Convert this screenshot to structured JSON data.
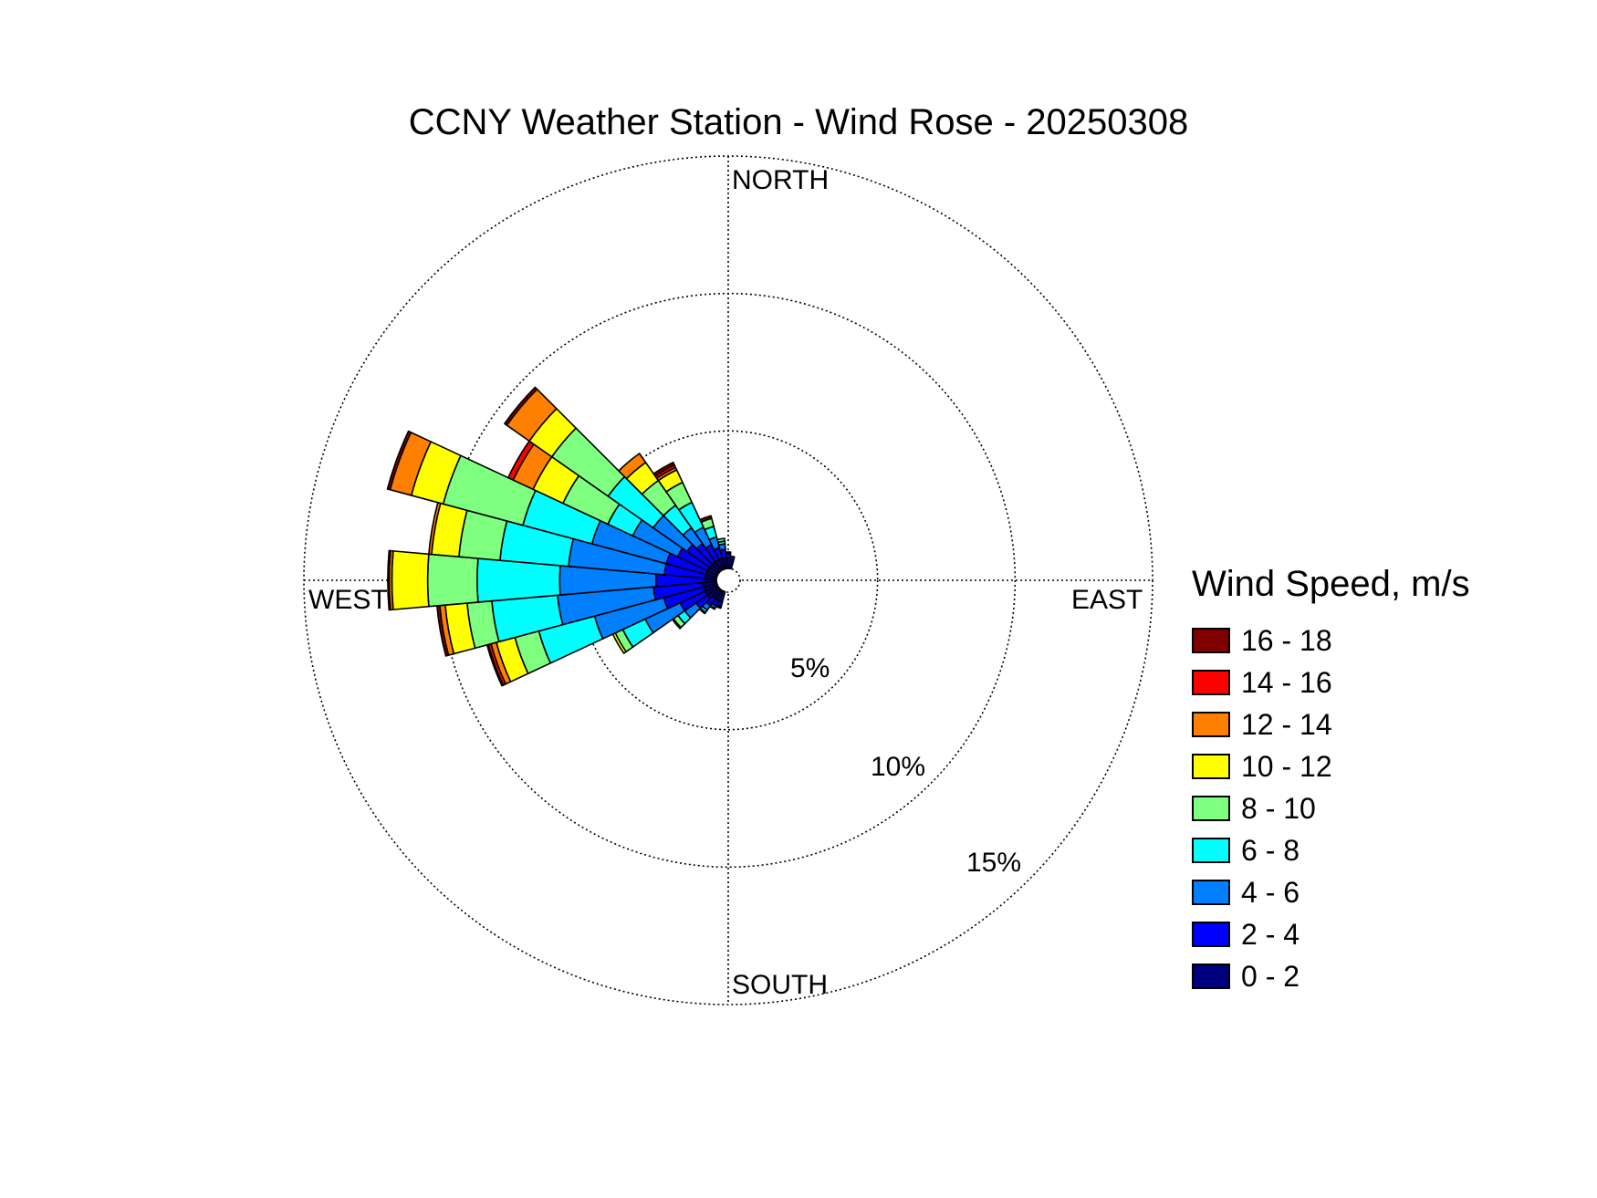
{
  "chart_data": {
    "type": "windrose",
    "title": "CCNY Weather Station - Wind Rose - 20250308",
    "directions": {
      "north": "NORTH",
      "east": "EAST",
      "south": "SOUTH",
      "west": "WEST"
    },
    "radial_ticks": [
      5,
      10,
      15
    ],
    "radial_tick_labels": [
      "5%",
      "10%",
      "15%"
    ],
    "radial_max": 15,
    "legend_title": "Wind Speed, m/s",
    "speed_bins": [
      {
        "label": "0 - 2",
        "color": "#00007f"
      },
      {
        "label": "2 - 4",
        "color": "#0000ff"
      },
      {
        "label": "4 - 6",
        "color": "#007fff"
      },
      {
        "label": "6 - 8",
        "color": "#00ffff"
      },
      {
        "label": "8 - 10",
        "color": "#7fff7f"
      },
      {
        "label": "10 - 12",
        "color": "#ffff00"
      },
      {
        "label": "12 - 14",
        "color": "#ff7f00"
      },
      {
        "label": "14 - 16",
        "color": "#ff0000"
      },
      {
        "label": "16 - 18",
        "color": "#7f0000"
      }
    ],
    "sector_width_deg": 10,
    "sectors": [
      {
        "direction_deg": 200,
        "values": [
          0.4,
          0.15,
          0.05,
          0.02,
          0.0,
          0.0,
          0.0,
          0.0,
          0.0
        ]
      },
      {
        "direction_deg": 210,
        "values": [
          0.4,
          0.2,
          0.1,
          0.03,
          0.0,
          0.0,
          0.0,
          0.0,
          0.0
        ]
      },
      {
        "direction_deg": 220,
        "values": [
          0.4,
          0.3,
          0.2,
          0.1,
          0.05,
          0.0,
          0.0,
          0.0,
          0.0
        ]
      },
      {
        "direction_deg": 230,
        "values": [
          0.5,
          0.5,
          0.5,
          0.3,
          0.2,
          0.05,
          0.0,
          0.0,
          0.0
        ]
      },
      {
        "direction_deg": 240,
        "values": [
          0.5,
          1.0,
          1.4,
          0.9,
          0.3,
          0.1,
          0.0,
          0.0,
          0.0
        ]
      },
      {
        "direction_deg": 250,
        "values": [
          0.5,
          1.5,
          2.6,
          2.1,
          0.9,
          0.7,
          0.2,
          0.1,
          0.05
        ]
      },
      {
        "direction_deg": 260,
        "values": [
          0.5,
          1.8,
          3.5,
          2.4,
          0.9,
          0.8,
          0.2,
          0.0,
          0.1
        ]
      },
      {
        "direction_deg": 270,
        "values": [
          0.4,
          1.8,
          3.5,
          3.0,
          1.8,
          1.3,
          0.1,
          0.0,
          0.05
        ]
      },
      {
        "direction_deg": 280,
        "values": [
          0.4,
          1.5,
          3.5,
          2.5,
          1.5,
          1.0,
          0.1,
          0.0,
          0.0
        ]
      },
      {
        "direction_deg": 290,
        "values": [
          0.4,
          1.5,
          2.8,
          2.6,
          3.0,
          1.2,
          0.8,
          0.0,
          0.1
        ]
      },
      {
        "direction_deg": 300,
        "values": [
          0.4,
          1.2,
          1.8,
          1.0,
          1.8,
          1.2,
          0.8,
          0.2,
          0.0
        ]
      },
      {
        "direction_deg": 310,
        "values": [
          0.4,
          1.0,
          1.5,
          2.0,
          2.5,
          1.0,
          1.0,
          0.0,
          0.1
        ]
      },
      {
        "direction_deg": 320,
        "values": [
          0.4,
          0.8,
          0.7,
          1.0,
          1.1,
          0.8,
          0.4,
          0.0,
          0.0
        ]
      },
      {
        "direction_deg": 330,
        "values": [
          0.4,
          0.6,
          0.7,
          1.0,
          0.8,
          0.5,
          0.1,
          0.1,
          0.1
        ]
      },
      {
        "direction_deg": 340,
        "values": [
          0.4,
          0.4,
          0.4,
          0.4,
          0.3,
          0.0,
          0.0,
          0.0,
          0.1
        ]
      },
      {
        "direction_deg": 350,
        "values": [
          0.4,
          0.3,
          0.2,
          0.1,
          0.1,
          0.0,
          0.0,
          0.0,
          0.0
        ]
      },
      {
        "direction_deg": 0,
        "values": [
          0.4,
          0.15,
          0.05,
          0.0,
          0.0,
          0.0,
          0.0,
          0.0,
          0.0
        ]
      },
      {
        "direction_deg": 10,
        "values": [
          0.35,
          0.1,
          0.0,
          0.0,
          0.0,
          0.0,
          0.0,
          0.0,
          0.0
        ]
      }
    ]
  }
}
